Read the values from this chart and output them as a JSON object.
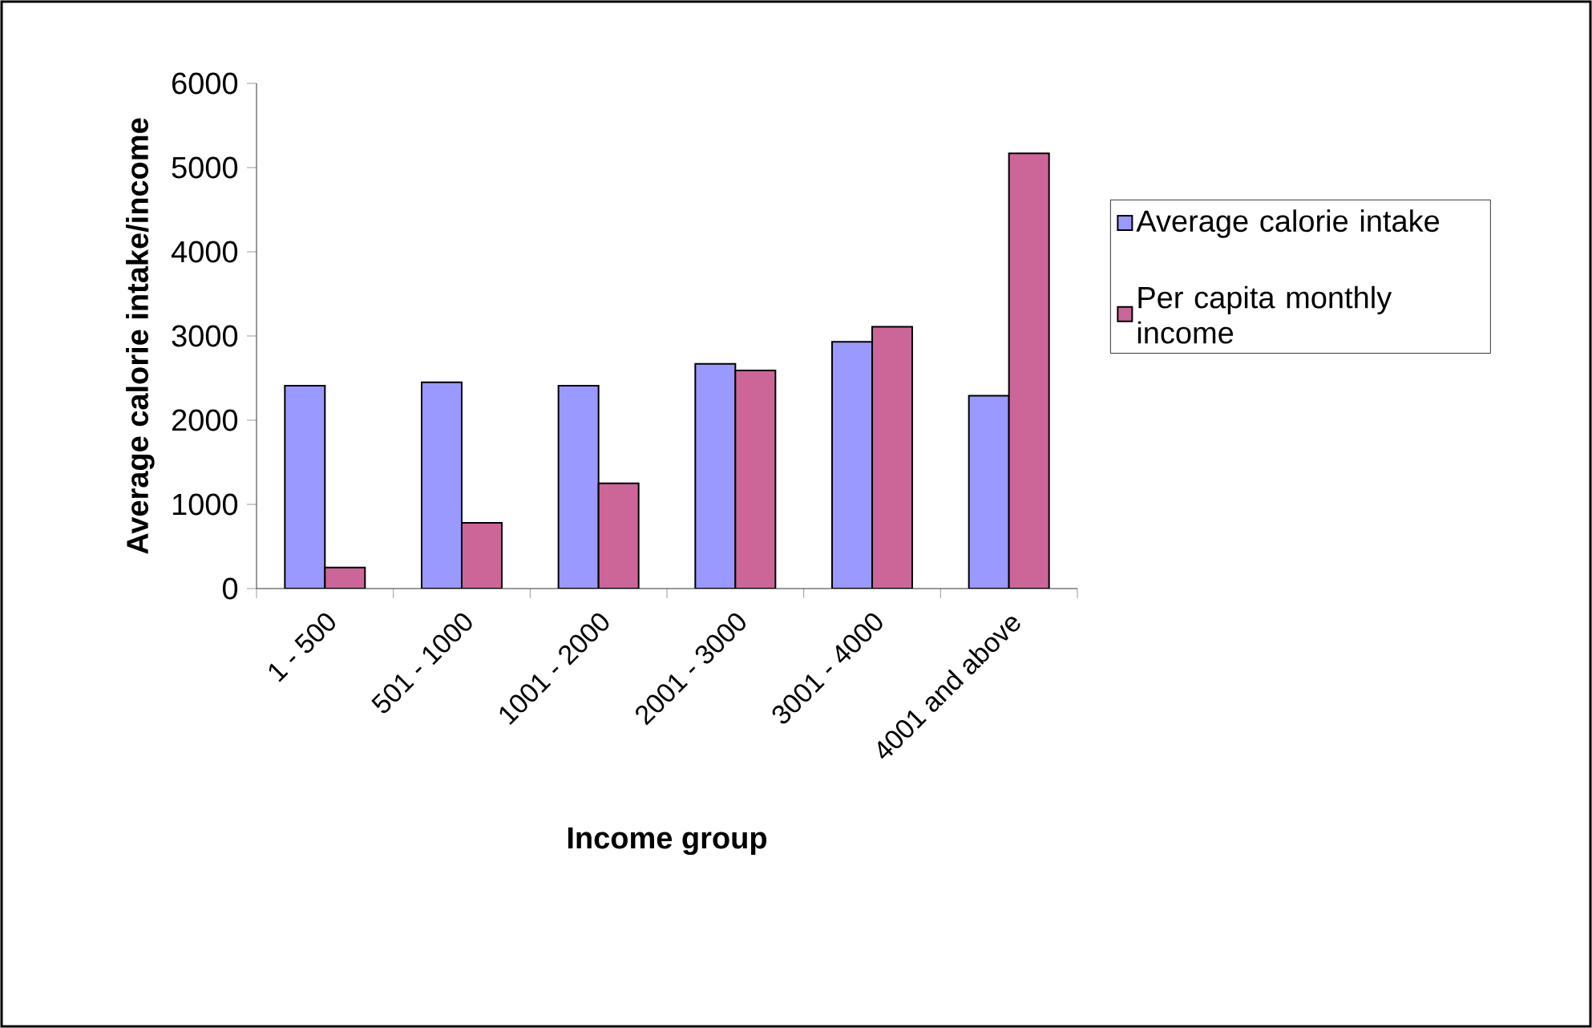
{
  "chart_data": {
    "type": "bar",
    "xlabel": "Income group",
    "ylabel": "Average calorie intake/income",
    "categories": [
      "1 - 500",
      "501 - 1000",
      "1001 - 2000",
      "2001 - 3000",
      "3001 - 4000",
      "4001 and above"
    ],
    "series": [
      {
        "name": "Average calorie intake",
        "color": "#9999ff",
        "values": [
          2410,
          2450,
          2410,
          2670,
          2930,
          2290
        ]
      },
      {
        "name": "Per capita monthly income",
        "color": "#cc6699",
        "values": [
          250,
          780,
          1250,
          2590,
          3110,
          5170
        ]
      }
    ],
    "ylim": [
      0,
      6000
    ],
    "yticks": [
      0,
      1000,
      2000,
      3000,
      4000,
      5000,
      6000
    ],
    "grid": false,
    "legend": "right"
  }
}
